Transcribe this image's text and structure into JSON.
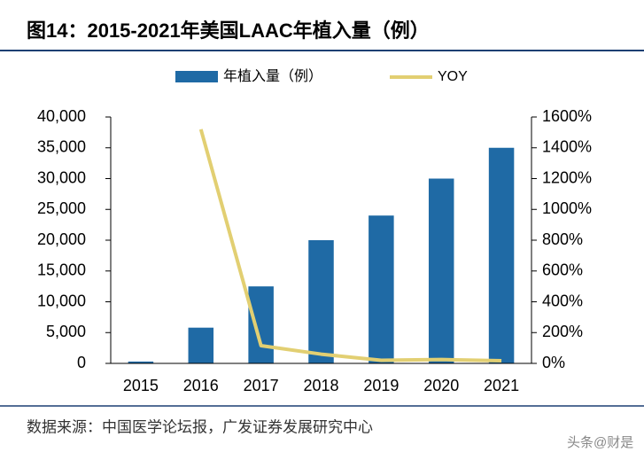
{
  "chart_data": {
    "type": "bar_line",
    "title": "图14：2015-2021年美国LAAC年植入量（例）",
    "categories": [
      "2015",
      "2016",
      "2017",
      "2018",
      "2019",
      "2020",
      "2021"
    ],
    "series": [
      {
        "name": "年植入量（例）",
        "type": "bar",
        "color": "#1f6aa5",
        "values": [
          300,
          5800,
          12500,
          20000,
          24000,
          30000,
          35000
        ]
      },
      {
        "name": "YOY",
        "type": "line",
        "axis": "y2",
        "color": "#e2cf72",
        "values": [
          null,
          1520,
          115,
          60,
          20,
          25,
          17
        ]
      }
    ],
    "ylim": [
      0,
      40000
    ],
    "yticks": [
      0,
      {
        "value": 5000,
        "label": "5,000"
      },
      {
        "value": 10000,
        "label": "10,000"
      },
      {
        "value": 15000,
        "label": "15,000"
      },
      {
        "value": 20000,
        "label": "20,000"
      },
      {
        "value": 25000,
        "label": "25,000"
      },
      {
        "value": 30000,
        "label": "30,000"
      },
      {
        "value": 35000,
        "label": "35,000"
      },
      {
        "value": 40000,
        "label": "40,000"
      }
    ],
    "y2lim": [
      0,
      1600
    ],
    "y2ticks": [
      {
        "value": 0,
        "label": "0%"
      },
      {
        "value": 200,
        "label": "200%"
      },
      {
        "value": 400,
        "label": "400%"
      },
      {
        "value": 600,
        "label": "600%"
      },
      {
        "value": 800,
        "label": "800%"
      },
      {
        "value": 1000,
        "label": "1000%"
      },
      {
        "value": 1200,
        "label": "1200%"
      },
      {
        "value": 1400,
        "label": "1400%"
      },
      {
        "value": 1600,
        "label": "1600%"
      }
    ],
    "source": "数据来源：中国医学论坛报，广发证券发展研究中心",
    "watermark": "头条@财是"
  }
}
